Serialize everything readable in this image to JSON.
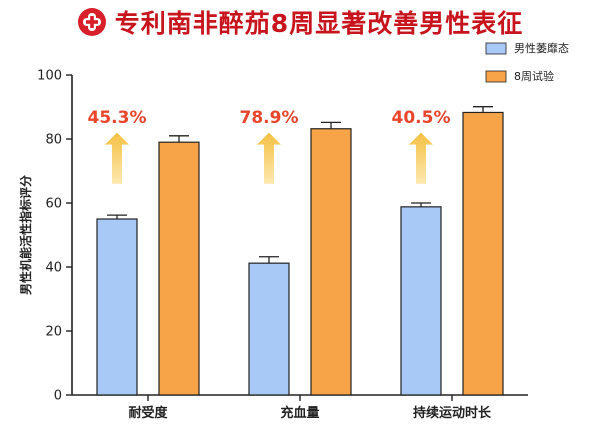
{
  "title": "专利南非醉茄8周显著改善男性表征",
  "colors": {
    "title": "#c8151d",
    "series": [
      "#a8c8f5",
      "#f7a448"
    ],
    "annotation": "#e8452c",
    "arrow_top": "#f5c043",
    "arrow_bottom": "#fce8b0"
  },
  "chart_data": {
    "type": "bar",
    "title": "专利南非醉茄8周显著改善男性表征",
    "ylabel": "男性机能活性指标评分",
    "xlabel": "",
    "ylim": [
      0,
      100
    ],
    "yticks": [
      "0",
      "20",
      "40",
      "60",
      "80",
      "100"
    ],
    "grid": false,
    "legend_position": "top-right",
    "categories": [
      "耐受度",
      "充血量",
      "持续运动时长"
    ],
    "series": [
      {
        "name": "男性萎靡态",
        "values": [
          55,
          41.2,
          58.8
        ],
        "errors": [
          1.2,
          2.0,
          1.2
        ]
      },
      {
        "name": "8周试验",
        "values": [
          79,
          83.2,
          88.3
        ],
        "errors": [
          2.0,
          2.0,
          1.8
        ]
      }
    ],
    "annotations": [
      "45.3%",
      "78.9%",
      "40.5%"
    ]
  }
}
